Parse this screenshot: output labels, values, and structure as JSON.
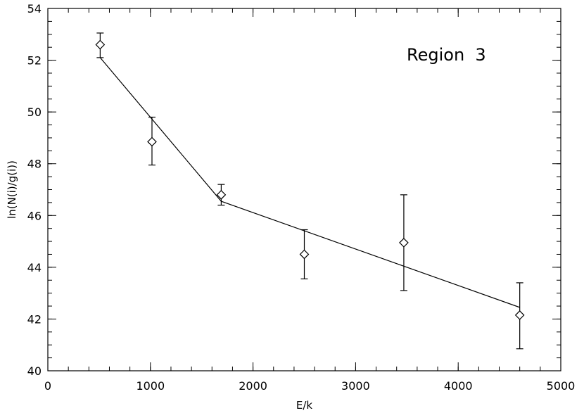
{
  "chart_data": {
    "type": "scatter",
    "title": "",
    "xlabel": "E/k",
    "ylabel": "ln(N(i)/g(i))",
    "xlim": [
      0,
      5000
    ],
    "ylim": [
      40,
      54
    ],
    "x_major_ticks": [
      0,
      1000,
      2000,
      3000,
      4000,
      5000
    ],
    "y_major_ticks": [
      40,
      42,
      44,
      46,
      48,
      50,
      52,
      54
    ],
    "x_minor_step": 200,
    "y_minor_step": 0.5,
    "grid": false,
    "annotation": "Region  3",
    "points": [
      {
        "x": 510,
        "y": 52.6,
        "err_low": 52.1,
        "err_high": 53.05
      },
      {
        "x": 1015,
        "y": 48.85,
        "err_low": 47.95,
        "err_high": 49.8
      },
      {
        "x": 1690,
        "y": 46.8,
        "err_low": 46.4,
        "err_high": 47.2
      },
      {
        "x": 2500,
        "y": 44.5,
        "err_low": 43.55,
        "err_high": 45.45
      },
      {
        "x": 3470,
        "y": 44.95,
        "err_low": 43.1,
        "err_high": 46.8
      },
      {
        "x": 4600,
        "y": 42.15,
        "err_low": 40.85,
        "err_high": 43.4
      }
    ],
    "fit_line": {
      "x": [
        510,
        1690,
        4600
      ],
      "y": [
        52.1,
        46.55,
        42.45
      ]
    }
  }
}
